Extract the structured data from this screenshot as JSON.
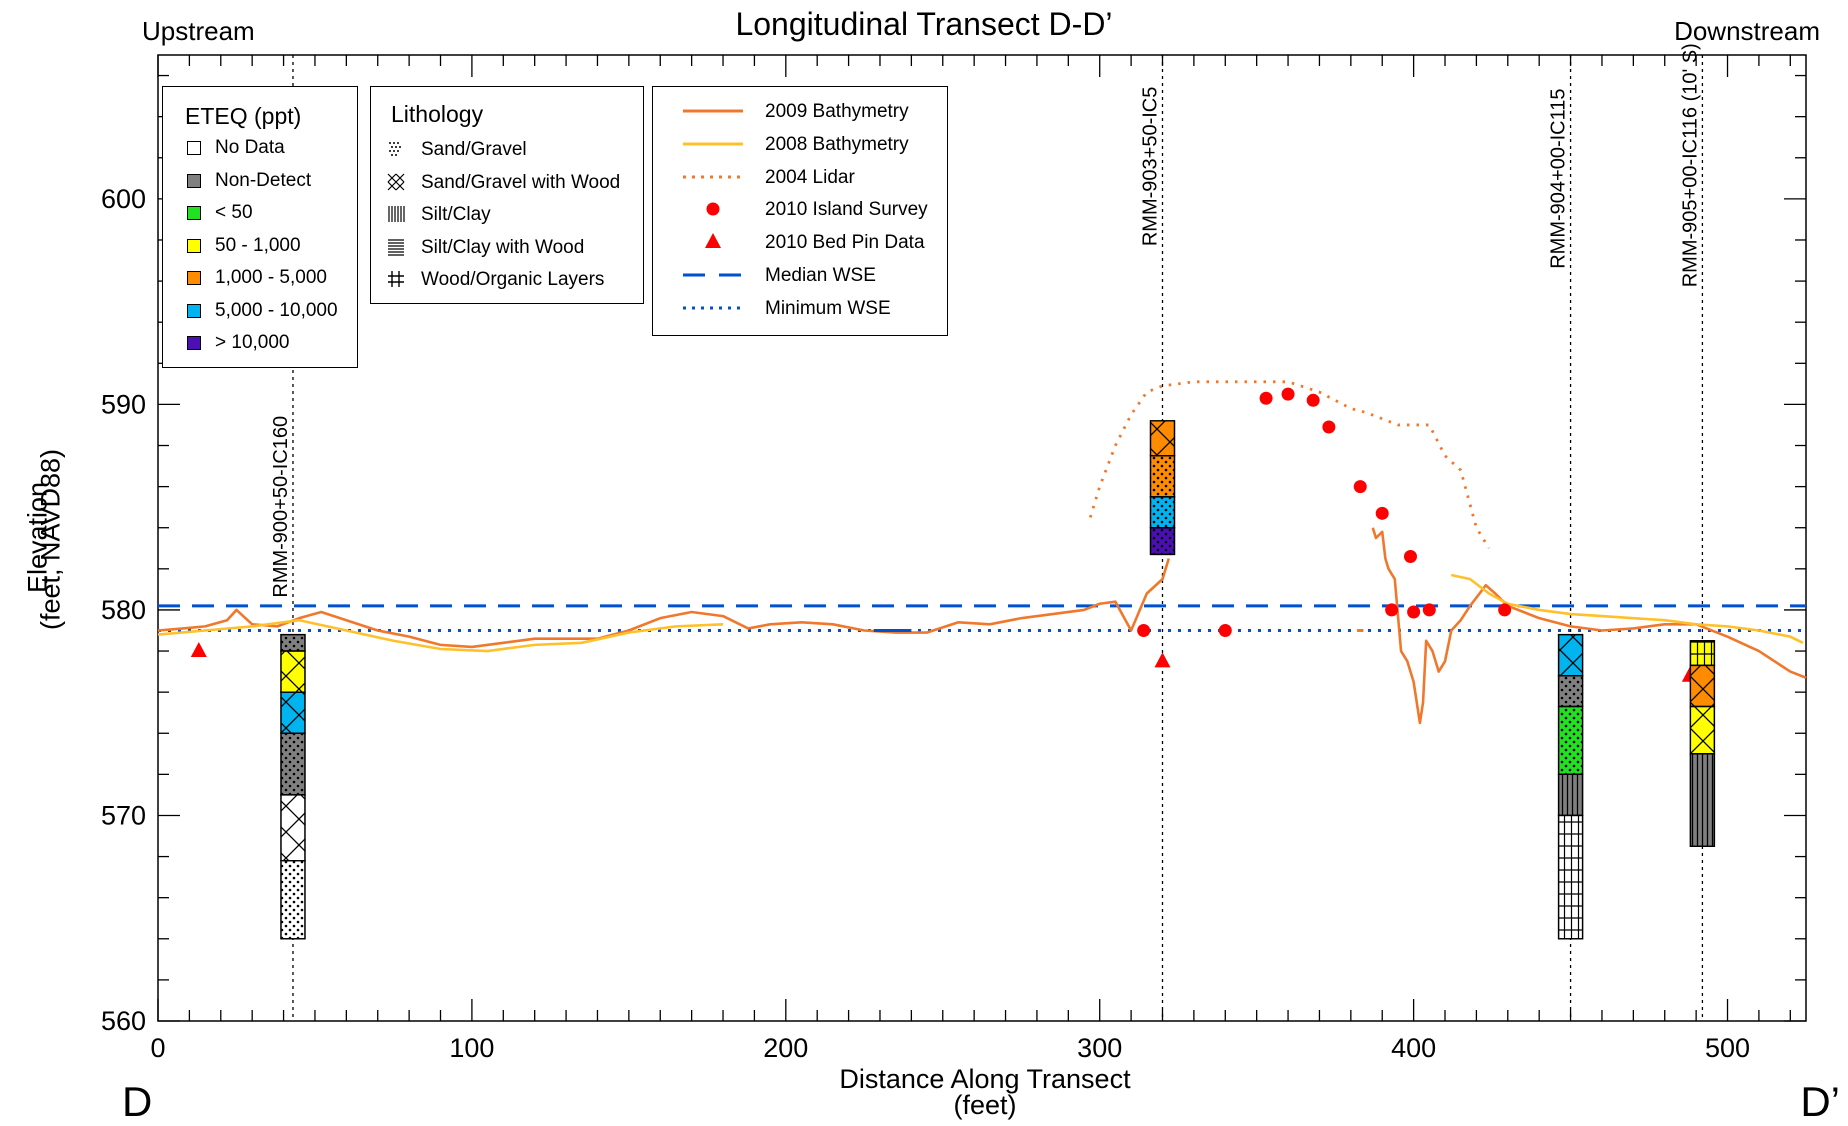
{
  "chart_data": {
    "type": "line",
    "title": "Longitudinal Transect D-D’",
    "corner_labels": {
      "top_left": "Upstream",
      "top_right": "Downstream",
      "bottom_left": "D",
      "bottom_right": "D’"
    },
    "xlabel": "Distance Along Transect",
    "xlabel_units": "(feet)",
    "ylabel": "Elevation",
    "ylabel_units": "(feet, NAVD88)",
    "xlim": [
      0,
      525
    ],
    "ylim": [
      560,
      607
    ],
    "x_ticks": [
      0,
      100,
      200,
      300,
      400,
      500
    ],
    "y_ticks": [
      560,
      570,
      580,
      590,
      600
    ],
    "grid": false,
    "legends": {
      "eteq": {
        "title": "ETEQ (ppt)",
        "items": [
          {
            "label": "No Data",
            "color": "#ffffff"
          },
          {
            "label": "Non-Detect",
            "color": "#808080"
          },
          {
            "label": "< 50",
            "color": "#22e022"
          },
          {
            "label": "50 - 1,000",
            "color": "#ffff00"
          },
          {
            "label": "1,000 - 5,000",
            "color": "#ff8c00"
          },
          {
            "label": "5,000 - 10,000",
            "color": "#00b4f0"
          },
          {
            "label": "> 10,000",
            "color": "#4b0fb4"
          }
        ]
      },
      "lithology": {
        "title": "Lithology",
        "items": [
          {
            "label": "Sand/Gravel",
            "pattern": "dots"
          },
          {
            "label": "Sand/Gravel with Wood",
            "pattern": "xhatch"
          },
          {
            "label": "Silt/Clay",
            "pattern": "vlines"
          },
          {
            "label": "Silt/Clay with Wood",
            "pattern": "hlines"
          },
          {
            "label": "Wood/Organic Layers",
            "pattern": "grid"
          }
        ]
      },
      "series": {
        "items": [
          {
            "label": "2009 Bathymetry",
            "style": "solid",
            "color": "#f0782d"
          },
          {
            "label": "2008 Bathymetry",
            "style": "solid",
            "color": "#ffc02a"
          },
          {
            "label": "2004 Lidar",
            "style": "dotted",
            "color": "#f0782d"
          },
          {
            "label": "2010 Island Survey",
            "style": "circle",
            "color": "#ff0000"
          },
          {
            "label": "2010 Bed Pin Data",
            "style": "triangle",
            "color": "#ff0000"
          },
          {
            "label": "Median WSE",
            "style": "dashed",
            "color": "#0050d2"
          },
          {
            "label": "Minimum WSE",
            "style": "dotted",
            "color": "#0050d2"
          }
        ]
      }
    },
    "series": [
      {
        "name": "2009 Bathymetry",
        "type": "line",
        "x": [
          0,
          8,
          15,
          22,
          25,
          30,
          38,
          45,
          52,
          60,
          70,
          80,
          90,
          100,
          110,
          120,
          130,
          140,
          150,
          160,
          170,
          180,
          188,
          195,
          205,
          215,
          225,
          235,
          245,
          255,
          265,
          275,
          285,
          295,
          300,
          305,
          310,
          315,
          320,
          322
        ],
        "y": [
          579.0,
          579.1,
          579.2,
          579.5,
          580.0,
          579.3,
          579.2,
          579.6,
          579.9,
          579.5,
          579.0,
          578.7,
          578.3,
          578.2,
          578.4,
          578.6,
          578.6,
          578.6,
          579.0,
          579.6,
          579.9,
          579.7,
          579.1,
          579.3,
          579.4,
          579.3,
          579.0,
          578.9,
          578.9,
          579.4,
          579.3,
          579.6,
          579.8,
          580.0,
          580.3,
          580.4,
          579.0,
          580.8,
          581.5,
          582.5
        ]
      },
      {
        "name": "2009 Bathymetry",
        "type": "line",
        "x": [
          387,
          388,
          390,
          391,
          392,
          394,
          396,
          398,
          400,
          402,
          403,
          404,
          406,
          408,
          410,
          412,
          415,
          418,
          421,
          423,
          426,
          430,
          435,
          440,
          445,
          450,
          460,
          470,
          480,
          490,
          500,
          510,
          520,
          525
        ],
        "y": [
          584.0,
          583.5,
          583.8,
          582.5,
          582.0,
          581.5,
          578.0,
          577.5,
          576.5,
          574.5,
          575.5,
          578.5,
          578.0,
          577.0,
          577.5,
          579.0,
          579.5,
          580.2,
          580.8,
          581.2,
          580.8,
          580.2,
          579.9,
          579.6,
          579.4,
          579.2,
          579.0,
          579.1,
          579.3,
          579.3,
          578.7,
          578.0,
          577.0,
          576.7
        ]
      },
      {
        "name": "2008 Bathymetry",
        "type": "line",
        "x": [
          0,
          15,
          30,
          45,
          60,
          75,
          90,
          105,
          120,
          135,
          150,
          165,
          180
        ],
        "y": [
          578.8,
          579.0,
          579.2,
          579.5,
          579.0,
          578.5,
          578.1,
          578.0,
          578.3,
          578.4,
          578.9,
          579.2,
          579.3
        ]
      },
      {
        "name": "2008 Bathymetry",
        "type": "line",
        "x": [
          412,
          418,
          424,
          430,
          440,
          450,
          460,
          470,
          480,
          490,
          500,
          510,
          520,
          524
        ],
        "y": [
          581.7,
          581.5,
          580.8,
          580.3,
          580.0,
          579.8,
          579.7,
          579.6,
          579.5,
          579.3,
          579.2,
          579.0,
          578.7,
          578.4
        ]
      },
      {
        "name": "2004 Lidar",
        "type": "line",
        "x": [
          297,
          300,
          305,
          310,
          315,
          320,
          330,
          340,
          350,
          360,
          370,
          375,
          380,
          385,
          390,
          395,
          400,
          405,
          410,
          415,
          420,
          424
        ],
        "y": [
          584.5,
          586.0,
          588.0,
          589.5,
          590.6,
          590.9,
          591.1,
          591.1,
          591.1,
          591.1,
          590.6,
          590.2,
          589.8,
          589.6,
          589.3,
          589.0,
          589.0,
          589.0,
          587.5,
          586.8,
          584.0,
          583.0
        ]
      },
      {
        "name": "2010 Island Survey",
        "type": "scatter",
        "x": [
          314,
          340,
          353,
          360,
          368,
          373,
          383,
          390,
          393,
          399,
          400,
          405,
          429
        ],
        "y": [
          579.0,
          579.0,
          590.3,
          590.5,
          590.2,
          588.9,
          586.0,
          584.7,
          580.0,
          582.6,
          579.9,
          580.0,
          580.0
        ]
      },
      {
        "name": "2010 Bed Pin Data",
        "type": "scatter",
        "x": [
          13,
          320,
          488
        ],
        "y": [
          578.0,
          577.5,
          576.8
        ]
      },
      {
        "name": "Median WSE",
        "type": "hline",
        "y": 580.2
      },
      {
        "name": "Minimum WSE",
        "type": "hline",
        "y": 579.0
      }
    ],
    "cores": [
      {
        "label": "RMM-900+50-IC160",
        "x": 43,
        "top": 578.8,
        "segments": [
          {
            "top": 578.8,
            "bottom": 578.0,
            "color": "#808080",
            "pattern": "dots"
          },
          {
            "top": 578.0,
            "bottom": 576.0,
            "color": "#ffff00",
            "pattern": "xhatch"
          },
          {
            "top": 576.0,
            "bottom": 574.0,
            "color": "#00b4f0",
            "pattern": "xhatch"
          },
          {
            "top": 574.0,
            "bottom": 571.0,
            "color": "#808080",
            "pattern": "dots"
          },
          {
            "top": 571.0,
            "bottom": 567.8,
            "color": "#ffffff",
            "pattern": "xhatch"
          },
          {
            "top": 567.8,
            "bottom": 564.0,
            "color": "#ffffff",
            "pattern": "dots"
          }
        ]
      },
      {
        "label": "RMM-903+50-IC5",
        "x": 320,
        "top": 589.2,
        "segments": [
          {
            "top": 589.2,
            "bottom": 587.5,
            "color": "#ff8c00",
            "pattern": "xhatch"
          },
          {
            "top": 587.5,
            "bottom": 585.5,
            "color": "#ff8c00",
            "pattern": "dots"
          },
          {
            "top": 585.5,
            "bottom": 584.0,
            "color": "#00b4f0",
            "pattern": "dots"
          },
          {
            "top": 584.0,
            "bottom": 582.7,
            "color": "#4b0fb4",
            "pattern": "dots"
          }
        ]
      },
      {
        "label": "RMM-904+00-IC115",
        "x": 450,
        "top": 578.8,
        "segments": [
          {
            "top": 578.8,
            "bottom": 576.8,
            "color": "#00b4f0",
            "pattern": "xhatch"
          },
          {
            "top": 576.8,
            "bottom": 575.3,
            "color": "#808080",
            "pattern": "dots"
          },
          {
            "top": 575.3,
            "bottom": 572.0,
            "color": "#22e022",
            "pattern": "dots"
          },
          {
            "top": 572.0,
            "bottom": 570.0,
            "color": "#808080",
            "pattern": "vlines"
          },
          {
            "top": 570.0,
            "bottom": 564.0,
            "color": "#ffffff",
            "pattern": "grid"
          }
        ]
      },
      {
        "label": "RMM-905+00-IC116 (10' S)",
        "x": 492,
        "top": 578.5,
        "segments": [
          {
            "top": 578.5,
            "bottom": 577.3,
            "color": "#ffff00",
            "pattern": "grid"
          },
          {
            "top": 577.3,
            "bottom": 575.3,
            "color": "#ff8c00",
            "pattern": "xhatch"
          },
          {
            "top": 575.3,
            "bottom": 573.0,
            "color": "#ffff00",
            "pattern": "xhatch"
          },
          {
            "top": 573.0,
            "bottom": 568.5,
            "color": "#808080",
            "pattern": "vlines"
          }
        ]
      }
    ],
    "dash_marks": [
      {
        "x1": 228,
        "x2": 240,
        "y": 579.0,
        "color": "#0050d2"
      },
      {
        "x1": 382,
        "x2": 384,
        "y": 579.0,
        "color": "#f0782d"
      }
    ]
  }
}
